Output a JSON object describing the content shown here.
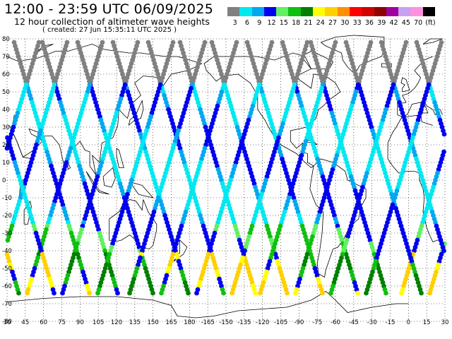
{
  "header": {
    "title": "12:00 - 23:59 UTC 06/09/2025",
    "subtitle": "12 hour collection of altimeter wave heights",
    "created": "( created: 27 Jun 15:35:11 UTC 2025 )"
  },
  "legend": {
    "colors": [
      "#808080",
      "#00e8f0",
      "#00a8f0",
      "#0000f0",
      "#60f060",
      "#10c010",
      "#008000",
      "#ffff00",
      "#ffd000",
      "#ff9000",
      "#ff0000",
      "#d00000",
      "#900000",
      "#a000a0",
      "#c8a0f0",
      "#ff90e0",
      "#000000"
    ],
    "labels": [
      "3",
      "6",
      "9",
      "12",
      "15",
      "18",
      "21",
      "24",
      "27",
      "30",
      "33",
      "36",
      "39",
      "42",
      "45",
      "70",
      "(ft)"
    ]
  },
  "map": {
    "lat_labels": [
      "80",
      "70",
      "60",
      "50",
      "40",
      "30",
      "20",
      "10",
      "0",
      "-10",
      "-20",
      "-30",
      "-40",
      "-50",
      "-60",
      "-70",
      "-80"
    ],
    "lon_labels": [
      "30",
      "45",
      "60",
      "75",
      "90",
      "105",
      "120",
      "135",
      "150",
      "165",
      "180",
      "-165",
      "-150",
      "-135",
      "-120",
      "-105",
      "-90",
      "-75",
      "-60",
      "-45",
      "-30",
      "-15",
      "0",
      "15",
      "30"
    ]
  }
}
